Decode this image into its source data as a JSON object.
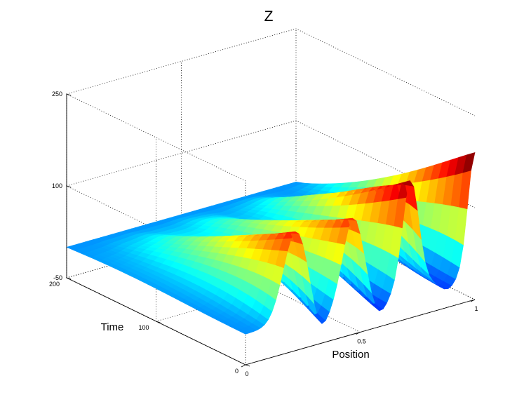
{
  "chart_data": {
    "type": "surface",
    "title": "Z",
    "xlabel": "Position",
    "ylabel": "Time",
    "zlabel": "",
    "xlim": [
      0,
      1
    ],
    "ylim": [
      0,
      200
    ],
    "zlim": [
      -50,
      250
    ],
    "x_ticks": [
      "0",
      "0.5",
      "1"
    ],
    "y_ticks": [
      "0",
      "100",
      "200"
    ],
    "z_ticks": [
      "-50",
      "100",
      "250"
    ],
    "colormap": "jet",
    "grid": true,
    "surface": {
      "x": [
        0,
        0.1,
        0.2,
        0.25,
        0.3,
        0.35,
        0.4,
        0.45,
        0.5,
        0.55,
        0.6,
        0.65,
        0.7,
        0.75,
        0.8,
        0.85,
        0.9,
        1.0
      ],
      "peaks_at_time_0": [
        {
          "x": 0.22,
          "z": 145
        },
        {
          "x": 0.47,
          "z": 140
        },
        {
          "x": 0.72,
          "z": 175
        },
        {
          "x": 1.0,
          "z": 190
        }
      ],
      "troughs_at_time_0": [
        {
          "x": 0.32,
          "z": -40
        },
        {
          "x": 0.58,
          "z": -30
        },
        {
          "x": 0.88,
          "z": -20
        }
      ],
      "value_at_time_200": 0
    }
  }
}
